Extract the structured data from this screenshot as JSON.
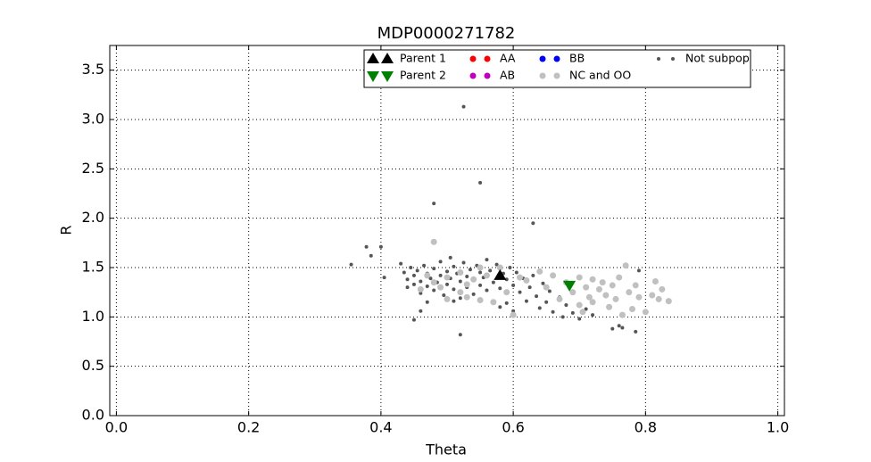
{
  "chart_data": {
    "type": "scatter",
    "title": "MDP0000271782",
    "x_label": "Theta",
    "y_label": "R",
    "xlim": [
      -0.01,
      1.01
    ],
    "ylim": [
      0,
      3.75
    ],
    "grid": true,
    "legend": "upper center",
    "xticks": [
      {
        "value": 0,
        "label": "0.0"
      },
      {
        "value": 0.2,
        "label": "0.2"
      },
      {
        "value": 0.4,
        "label": "0.4"
      },
      {
        "value": 0.6,
        "label": "0.6"
      },
      {
        "value": 0.8,
        "label": "0.8"
      },
      {
        "value": 1,
        "label": "1.0"
      }
    ],
    "yticks": [
      {
        "value": 0,
        "label": "0.0"
      },
      {
        "value": 0.5,
        "label": "0.5"
      },
      {
        "value": 1,
        "label": "1.0"
      },
      {
        "value": 1.5,
        "label": "1.5"
      },
      {
        "value": 2,
        "label": "2.0"
      },
      {
        "value": 2.5,
        "label": "2.5"
      },
      {
        "value": 3,
        "label": "3.0"
      },
      {
        "value": 3.5,
        "label": "3.5"
      }
    ],
    "series": [
      {
        "name": "Parent 1",
        "color": "#000000",
        "marker": "^",
        "x": [
          0.58
        ],
        "values": [
          1.42
        ]
      },
      {
        "name": "Parent 2",
        "color": "#008000",
        "marker": "v",
        "x": [
          0.685
        ],
        "values": [
          1.32
        ]
      },
      {
        "name": "AA",
        "color": "#ff0000",
        "marker": "o",
        "x": [],
        "values": []
      },
      {
        "name": "AB",
        "color": "#bf00bf",
        "marker": "o",
        "x": [],
        "values": []
      },
      {
        "name": "BB",
        "color": "#0000ff",
        "marker": "o",
        "x": [],
        "values": []
      },
      {
        "name": "NC and OO",
        "color": "#c0c0c0",
        "marker": "o",
        "x": [
          0.48,
          0.47,
          0.48,
          0.49,
          0.5,
          0.52,
          0.53,
          0.54,
          0.55,
          0.56,
          0.57,
          0.58,
          0.59,
          0.6,
          0.61,
          0.62,
          0.64,
          0.65,
          0.66,
          0.67,
          0.68,
          0.69,
          0.7,
          0.7,
          0.71,
          0.715,
          0.72,
          0.72,
          0.73,
          0.735,
          0.74,
          0.745,
          0.75,
          0.755,
          0.76,
          0.765,
          0.77,
          0.775,
          0.78,
          0.785,
          0.79,
          0.8,
          0.81,
          0.815,
          0.82,
          0.825,
          0.835,
          0.52,
          0.53,
          0.55,
          0.46,
          0.5,
          0.705
        ],
        "values": [
          1.76,
          1.42,
          1.35,
          1.3,
          1.4,
          1.45,
          1.2,
          1.38,
          1.17,
          1.42,
          1.15,
          1.5,
          1.25,
          1.02,
          1.4,
          1.37,
          1.46,
          1.3,
          1.42,
          1.18,
          1.35,
          1.25,
          1.4,
          1.12,
          1.3,
          1.2,
          1.38,
          1.15,
          1.28,
          1.35,
          1.22,
          1.1,
          1.32,
          1.18,
          1.4,
          1.02,
          1.52,
          1.25,
          1.08,
          1.32,
          1.2,
          1.05,
          1.22,
          1.36,
          1.18,
          1.28,
          1.16,
          1.25,
          1.33,
          1.5,
          1.28,
          1.18,
          1.05
        ]
      },
      {
        "name": "Not subpop",
        "color": "#555555",
        "marker": ".",
        "x": [
          0.43,
          0.435,
          0.44,
          0.44,
          0.445,
          0.45,
          0.45,
          0.455,
          0.46,
          0.46,
          0.465,
          0.47,
          0.47,
          0.475,
          0.48,
          0.48,
          0.485,
          0.49,
          0.49,
          0.495,
          0.5,
          0.5,
          0.505,
          0.505,
          0.51,
          0.51,
          0.515,
          0.52,
          0.52,
          0.525,
          0.53,
          0.53,
          0.535,
          0.54,
          0.54,
          0.545,
          0.55,
          0.55,
          0.555,
          0.56,
          0.56,
          0.565,
          0.57,
          0.575,
          0.58,
          0.585,
          0.59,
          0.595,
          0.6,
          0.605,
          0.61,
          0.615,
          0.62,
          0.625,
          0.63,
          0.635,
          0.64,
          0.645,
          0.65,
          0.655,
          0.66,
          0.67,
          0.675,
          0.68,
          0.69,
          0.7,
          0.71,
          0.72,
          0.58,
          0.59,
          0.6,
          0.51,
          0.47,
          0.525,
          0.55,
          0.48,
          0.63,
          0.355,
          0.378,
          0.385,
          0.4,
          0.405,
          0.45,
          0.46,
          0.52,
          0.75,
          0.76,
          0.785,
          0.79,
          0.765
        ],
        "values": [
          1.54,
          1.45,
          1.38,
          1.3,
          1.5,
          1.42,
          1.33,
          1.47,
          1.36,
          1.24,
          1.52,
          1.44,
          1.31,
          1.39,
          1.49,
          1.27,
          1.35,
          1.56,
          1.42,
          1.22,
          1.46,
          1.33,
          1.6,
          1.39,
          1.28,
          1.51,
          1.44,
          1.36,
          1.19,
          1.55,
          1.41,
          1.3,
          1.48,
          1.37,
          1.23,
          1.52,
          1.45,
          1.32,
          1.4,
          1.58,
          1.27,
          1.47,
          1.35,
          1.53,
          1.29,
          1.44,
          1.38,
          1.5,
          1.32,
          1.45,
          1.25,
          1.39,
          1.16,
          1.3,
          1.42,
          1.21,
          1.09,
          1.34,
          1.15,
          1.26,
          1.05,
          1.2,
          1.0,
          1.12,
          1.04,
          0.98,
          1.08,
          1.02,
          1.1,
          1.14,
          1.06,
          1.16,
          1.15,
          3.13,
          2.36,
          2.15,
          1.95,
          1.53,
          1.71,
          1.62,
          1.71,
          1.4,
          0.97,
          1.06,
          0.82,
          0.88,
          0.91,
          0.85,
          1.47,
          0.89
        ]
      }
    ]
  }
}
